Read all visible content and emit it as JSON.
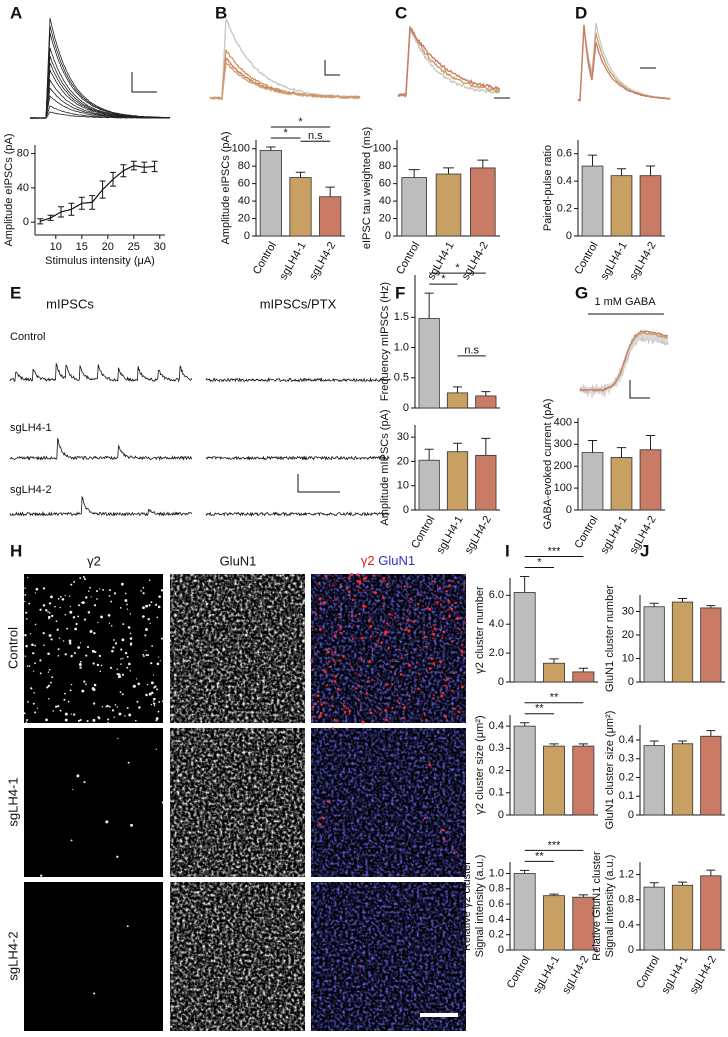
{
  "panel_labels": [
    "A",
    "B",
    "C",
    "D",
    "E",
    "F",
    "G",
    "H",
    "I",
    "J"
  ],
  "traces": {
    "E": {
      "headers": [
        "mIPSCs",
        "mIPSCs/PTX"
      ],
      "rows": [
        "Control",
        "sgLH4-1",
        "sgLH4-2"
      ]
    },
    "G": {
      "stimulus": "1 mM GABA"
    },
    "H": {
      "columns": [
        "γ2",
        "GluN1"
      ],
      "merge": [
        "γ2",
        "GluN1"
      ],
      "rows": [
        "Control",
        "sgLH4-1",
        "sgLH4-2"
      ]
    }
  },
  "chart_data": [
    {
      "type": "line",
      "x": [
        7,
        9,
        11,
        13,
        15,
        17,
        19,
        21,
        23,
        25,
        27,
        29
      ],
      "values": [
        1,
        5,
        12,
        15,
        22,
        23,
        38,
        50,
        60,
        66,
        64,
        65
      ],
      "errors": [
        3,
        3,
        6,
        7,
        7,
        8,
        10,
        8,
        7,
        5,
        6,
        6
      ],
      "color": "#111111",
      "xlim": [
        6,
        31
      ],
      "ylim": [
        -15,
        90
      ],
      "xticks": [
        10,
        15,
        20,
        25,
        30
      ],
      "yticks": [
        0,
        40,
        80
      ],
      "xlabel": "Stimulus intensity (μA)",
      "ylabel": "Amplitude eIPSCs (pA)"
    },
    {
      "type": "bar",
      "categories": [
        "Control",
        "sgLH4-1",
        "sgLH4-2"
      ],
      "values": [
        98,
        67,
        45
      ],
      "errors": [
        4,
        6,
        11
      ],
      "colors": [
        "#bdbdbd",
        "#c9a064",
        "#c97b66"
      ],
      "ylim": [
        0,
        110
      ],
      "yticks": [
        0,
        20,
        40,
        60,
        80,
        100
      ],
      "ylabel": "Amplitude eIPSCs (pA)",
      "significance": [
        {
          "from": 0,
          "to": 1,
          "label": "*"
        },
        {
          "from": 0,
          "to": 2,
          "label": "*"
        },
        {
          "from": 1,
          "to": 2,
          "label": "n.s"
        }
      ]
    },
    {
      "type": "bar",
      "categories": [
        "Control",
        "sgLH4-1",
        "sgLH4-2"
      ],
      "values": [
        67,
        71,
        78
      ],
      "errors": [
        9,
        7,
        9
      ],
      "colors": [
        "#bdbdbd",
        "#c9a064",
        "#c97b66"
      ],
      "ylim": [
        0,
        110
      ],
      "yticks": [
        0,
        20,
        40,
        60,
        80,
        100
      ],
      "ylabel": "eIPSC tau weighted (ms)"
    },
    {
      "type": "bar",
      "categories": [
        "Control",
        "sgLH4-1",
        "sgLH4-2"
      ],
      "values": [
        0.51,
        0.44,
        0.44
      ],
      "errors": [
        0.08,
        0.05,
        0.07
      ],
      "colors": [
        "#bdbdbd",
        "#c9a064",
        "#c97b66"
      ],
      "ylim": [
        0,
        0.7
      ],
      "yticks": [
        0,
        0.2,
        0.4,
        0.6
      ],
      "ylabel": "Paired-pulse ratio"
    },
    {
      "type": "bar",
      "values": [
        1.48,
        0.25,
        0.2
      ],
      "errors": [
        0.42,
        0.1,
        0.07
      ],
      "colors": [
        "#bdbdbd",
        "#c9a064",
        "#c97b66"
      ],
      "ylim": [
        0,
        2.2
      ],
      "yticks": [
        0,
        0.5,
        {
          "value": 1,
          "label": "1.0"
        },
        1.5
      ],
      "ylabel": "Frequency mIPSCs (Hz)",
      "significance": [
        {
          "from": 0,
          "to": 1,
          "label": "*"
        },
        {
          "from": 0,
          "to": 2,
          "label": "*"
        },
        {
          "from": 1,
          "to": 2,
          "label": "n.s"
        }
      ]
    },
    {
      "type": "bar",
      "categories": [
        "Control",
        "sgLH4-1",
        "sgLH4-2"
      ],
      "values": [
        20.5,
        24,
        22.5
      ],
      "errors": [
        4.5,
        3.5,
        7
      ],
      "colors": [
        "#bdbdbd",
        "#c9a064",
        "#c97b66"
      ],
      "ylim": [
        0,
        35
      ],
      "yticks": [
        0,
        10,
        20,
        30
      ],
      "ylabel": "Amplitude mIPSCs (pA)"
    },
    {
      "type": "bar",
      "categories": [
        "Control",
        "sgLH4-1",
        "sgLH4-2"
      ],
      "values": [
        262,
        240,
        275
      ],
      "errors": [
        55,
        45,
        65
      ],
      "colors": [
        "#bdbdbd",
        "#c9a064",
        "#c97b66"
      ],
      "ylim": [
        0,
        420
      ],
      "yticks": [
        0,
        100,
        200,
        300,
        400
      ],
      "ylabel": "GABA-evoked current (pA)"
    },
    {
      "type": "bar",
      "values": [
        6.2,
        1.3,
        0.7
      ],
      "errors": [
        1.1,
        0.3,
        0.25
      ],
      "colors": [
        "#bdbdbd",
        "#c9a064",
        "#c97b66"
      ],
      "ylim": [
        0,
        7.2
      ],
      "yticks": [
        0,
        {
          "value": 2,
          "label": "2.0"
        },
        {
          "value": 4,
          "label": "4.0"
        },
        {
          "value": 6,
          "label": "6.0"
        }
      ],
      "ylabel": "γ2 cluster number",
      "significance": [
        {
          "from": 0,
          "to": 1,
          "label": "*"
        },
        {
          "from": 0,
          "to": 2,
          "label": "***"
        }
      ]
    },
    {
      "type": "bar",
      "values": [
        0.4,
        0.31,
        0.31
      ],
      "errors": [
        0.015,
        0.01,
        0.01
      ],
      "colors": [
        "#bdbdbd",
        "#c9a064",
        "#c97b66"
      ],
      "ylim": [
        0,
        0.45
      ],
      "yticks": [
        0,
        0.1,
        0.2,
        0.3,
        0.4
      ],
      "ylabel": "γ2 cluster size (μm²)",
      "significance": [
        {
          "from": 0,
          "to": 1,
          "label": "**"
        },
        {
          "from": 0,
          "to": 2,
          "label": "**"
        }
      ]
    },
    {
      "type": "bar",
      "categories": [
        "Control",
        "sgLH4-1",
        "sgLH4-2"
      ],
      "values": [
        1.0,
        0.71,
        0.69
      ],
      "errors": [
        0.04,
        0.02,
        0.03
      ],
      "colors": [
        "#bdbdbd",
        "#c9a064",
        "#c97b66"
      ],
      "ylim": [
        0,
        1.15
      ],
      "yticks": [
        0,
        0.2,
        0.4,
        0.6,
        0.8,
        {
          "value": 1,
          "label": "1.0"
        }
      ],
      "ylabel": [
        "Relative γ2 cluster",
        "Signal intensity (a.u.)"
      ],
      "significance": [
        {
          "from": 0,
          "to": 1,
          "label": "**"
        },
        {
          "from": 0,
          "to": 2,
          "label": "***"
        }
      ]
    },
    {
      "type": "bar",
      "values": [
        32,
        34,
        31.5
      ],
      "errors": [
        1.5,
        1.5,
        1
      ],
      "colors": [
        "#bdbdbd",
        "#c9a064",
        "#c97b66"
      ],
      "ylim": [
        0,
        37
      ],
      "yticks": [
        0,
        10,
        20,
        30
      ],
      "ylabel": "GluN1 cluster number"
    },
    {
      "type": "bar",
      "values": [
        0.37,
        0.38,
        0.42
      ],
      "errors": [
        0.025,
        0.015,
        0.03
      ],
      "colors": [
        "#bdbdbd",
        "#c9a064",
        "#c97b66"
      ],
      "ylim": [
        0,
        0.48
      ],
      "yticks": [
        0,
        0.1,
        0.2,
        0.3,
        0.4
      ],
      "ylabel": "GluN1 cluster size (μm²)"
    },
    {
      "type": "bar",
      "categories": [
        "Control",
        "sgLH4-1",
        "sgLH4-2"
      ],
      "values": [
        1.0,
        1.03,
        1.18
      ],
      "errors": [
        0.07,
        0.05,
        0.09
      ],
      "colors": [
        "#bdbdbd",
        "#c9a064",
        "#c97b66"
      ],
      "ylim": [
        0,
        1.4
      ],
      "yticks": [
        0,
        0.4,
        0.8,
        1.2
      ],
      "ylabel": [
        "Relative GluN1 cluster",
        "Signal intensity (a.u.)"
      ]
    }
  ]
}
